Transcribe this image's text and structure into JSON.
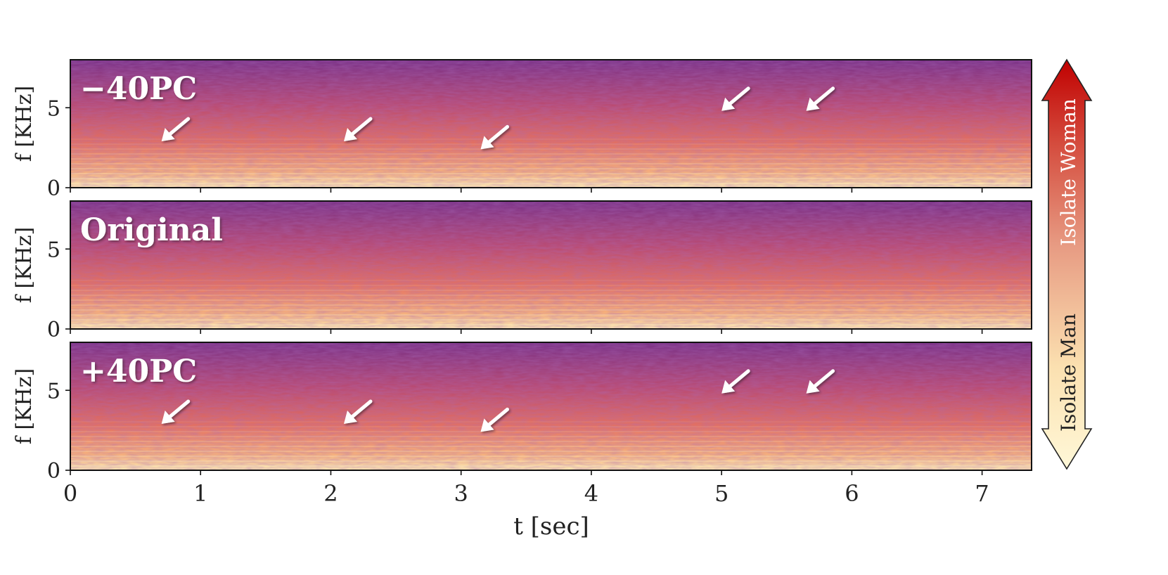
{
  "chart_data": [
    {
      "type": "heatmap",
      "panel_label": "−40PC",
      "ylabel": "f [KHz]",
      "yticks": [
        "0",
        "5"
      ],
      "ylim": [
        0,
        8
      ],
      "xlim": [
        0,
        7.38
      ],
      "arrows": [
        {
          "t": 0.7,
          "f": 2.9
        },
        {
          "t": 2.1,
          "f": 2.9
        },
        {
          "t": 3.15,
          "f": 2.4
        },
        {
          "t": 5.0,
          "f": 4.8
        },
        {
          "t": 5.65,
          "f": 4.8
        }
      ]
    },
    {
      "type": "heatmap",
      "panel_label": "Original",
      "ylabel": "f [KHz]",
      "yticks": [
        "0",
        "5"
      ],
      "ylim": [
        0,
        8
      ],
      "xlim": [
        0,
        7.38
      ],
      "arrows": []
    },
    {
      "type": "heatmap",
      "panel_label": "+40PC",
      "ylabel": "f [KHz]",
      "yticks": [
        "0",
        "5"
      ],
      "ylim": [
        0,
        8
      ],
      "xlim": [
        0,
        7.38
      ],
      "arrows": [
        {
          "t": 0.7,
          "f": 2.9
        },
        {
          "t": 2.1,
          "f": 2.9
        },
        {
          "t": 3.15,
          "f": 2.4
        },
        {
          "t": 5.0,
          "f": 4.8
        },
        {
          "t": 5.65,
          "f": 4.8
        }
      ],
      "xlabel": "t [sec]",
      "xticks": [
        "0",
        "1",
        "2",
        "3",
        "4",
        "5",
        "6",
        "7"
      ]
    }
  ],
  "colorbar": {
    "top_label": "Isolate Woman",
    "bottom_label": "Isolate Man",
    "top_color": "#c00000",
    "bottom_color": "#fff8d8"
  },
  "colors": {
    "spectrogram_dark": "#6a2b8a",
    "spectrogram_mid": "#d95f5a",
    "spectrogram_light": "#fde4a6",
    "arrow": "#ffffff"
  }
}
